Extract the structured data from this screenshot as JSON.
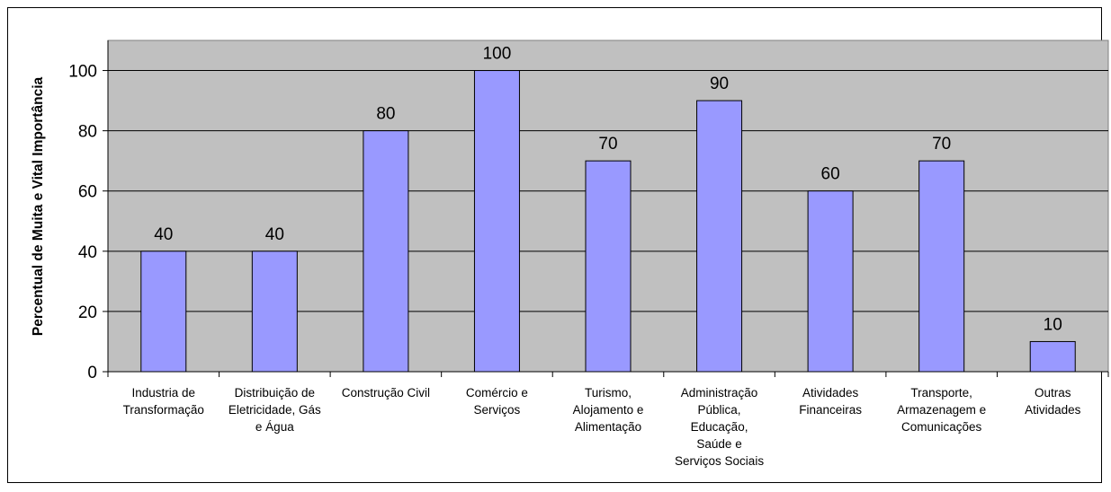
{
  "chart_data": {
    "type": "bar",
    "title": "",
    "xlabel": "",
    "ylabel": "Percentual de Muita e Vital Importância",
    "ylim": [
      0,
      110
    ],
    "yticks": [
      0,
      20,
      40,
      60,
      80,
      100
    ],
    "grid": true,
    "legend": "none",
    "colors": {
      "plot_background": "#c0c0c0",
      "bar_fill": "#9999ff",
      "bar_stroke": "#000000",
      "gridline": "#000000"
    },
    "categories": [
      [
        "Industria de",
        "Transformação"
      ],
      [
        "Distribuição de",
        "Eletricidade, Gás",
        "e Água"
      ],
      [
        "Construção Civil"
      ],
      [
        "Comércio e",
        "Serviços"
      ],
      [
        "Turismo,",
        "Alojamento e",
        "Alimentação"
      ],
      [
        "Administração",
        "Pública,",
        "Educação,",
        "Saúde e",
        "Serviços Sociais"
      ],
      [
        "Atividades",
        "Financeiras"
      ],
      [
        "Transporte,",
        "Armazenagem e",
        "Comunicações"
      ],
      [
        "Outras",
        "Atividades"
      ]
    ],
    "values": [
      40,
      40,
      80,
      100,
      70,
      90,
      60,
      70,
      10
    ]
  }
}
